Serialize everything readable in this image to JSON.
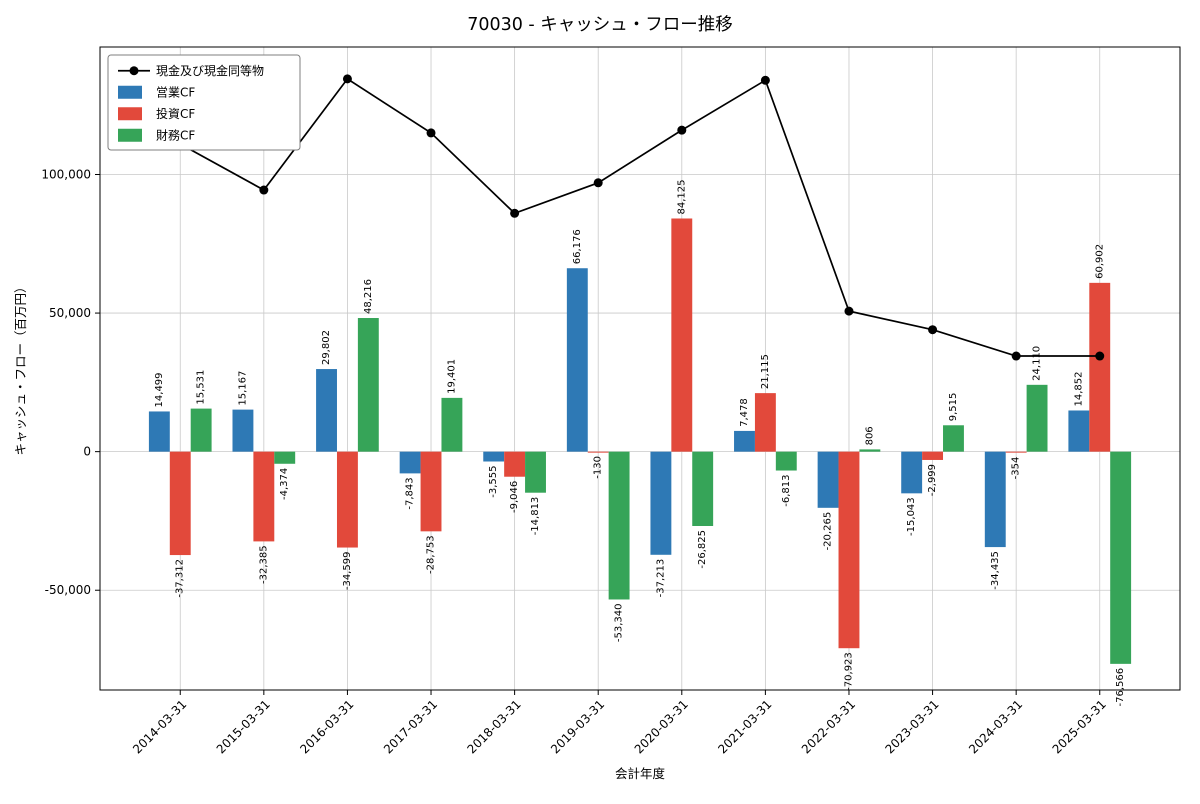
{
  "chart_data": {
    "type": "bar+line",
    "title": "70030 - キャッシュ・フロー推移",
    "xlabel": "会計年度",
    "ylabel": "キャッシュ・フロー（百万円）",
    "categories": [
      "2014-03-31",
      "2015-03-31",
      "2016-03-31",
      "2017-03-31",
      "2018-03-31",
      "2019-03-31",
      "2020-03-31",
      "2021-03-31",
      "2022-03-31",
      "2023-03-31",
      "2024-03-31",
      "2025-03-31"
    ],
    "bar_series": [
      {
        "name": "営業CF",
        "key": "operating-cf",
        "color": "#2e79b5",
        "values": [
          14499,
          15167,
          29802,
          -7843,
          -3555,
          66176,
          -37213,
          7478,
          -20265,
          -15043,
          -34435,
          14852
        ]
      },
      {
        "name": "投資CF",
        "key": "investing-cf",
        "color": "#e2493b",
        "values": [
          -37312,
          -32385,
          -34599,
          -28753,
          -9046,
          -130,
          84125,
          21115,
          -70923,
          -2999,
          -354,
          60902
        ]
      },
      {
        "name": "財務CF",
        "key": "financing-cf",
        "color": "#36a458",
        "values": [
          15531,
          -4374,
          48216,
          19401,
          -14813,
          -53340,
          -26825,
          -6813,
          806,
          9515,
          24110,
          -76566
        ]
      }
    ],
    "line_series": {
      "name": "現金及び現金同等物",
      "key": "cash-and-equivalents",
      "color": "#000000",
      "values": [
        111000,
        94400,
        134500,
        115000,
        86000,
        97000,
        116000,
        134000,
        50700,
        44000,
        34500,
        34500
      ]
    },
    "y_ticks": [
      -50000,
      0,
      50000,
      100000
    ],
    "ylim": [
      -86000,
      146000
    ],
    "grid": true,
    "legend_position": "upper left"
  }
}
